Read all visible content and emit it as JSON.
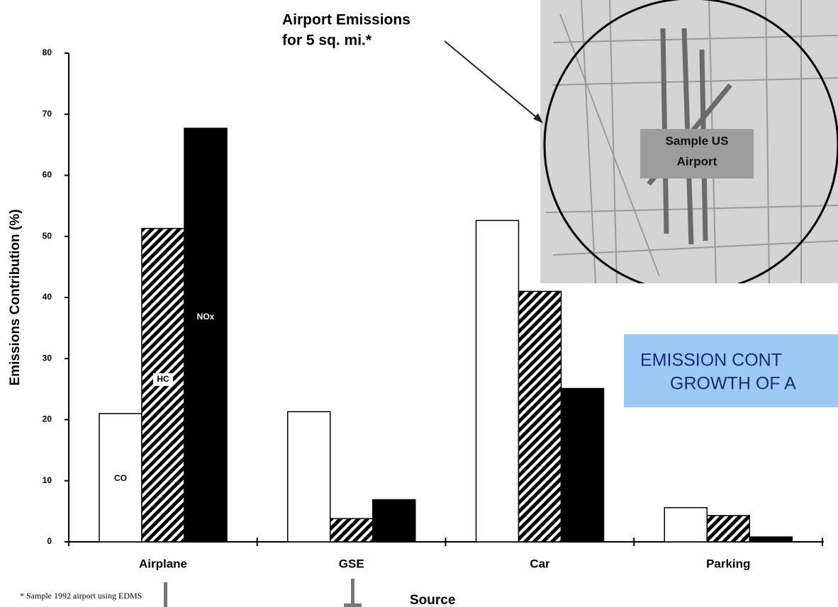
{
  "chart_data": {
    "type": "bar",
    "categories": [
      "Airplane",
      "GSE",
      "Car",
      "Parking"
    ],
    "series": [
      {
        "name": "CO",
        "color": "#ffffff",
        "values": [
          21.0,
          21.3,
          52.6,
          5.6
        ]
      },
      {
        "name": "HC",
        "color": "#000000",
        "hatch": true,
        "values": [
          51.3,
          3.8,
          41.0,
          4.3
        ]
      },
      {
        "name": "NOx",
        "color": "#000000",
        "values": [
          67.7,
          6.9,
          25.1,
          0.8
        ]
      }
    ],
    "ylim": [
      0,
      80
    ],
    "yticks": [
      0,
      10,
      20,
      30,
      40,
      50,
      60,
      70,
      80
    ],
    "y_label": "Emissions Contribution (%)",
    "x_label": "Source",
    "annotation": [
      "Airport Emissions",
      "for 5 sq. mi.*"
    ],
    "map_label": [
      "Sample US",
      "Airport"
    ],
    "banner": [
      "EMISSION CONT",
      "GROWTH OF A"
    ],
    "footnote": "* Sample 1992 airport using EDMS"
  }
}
